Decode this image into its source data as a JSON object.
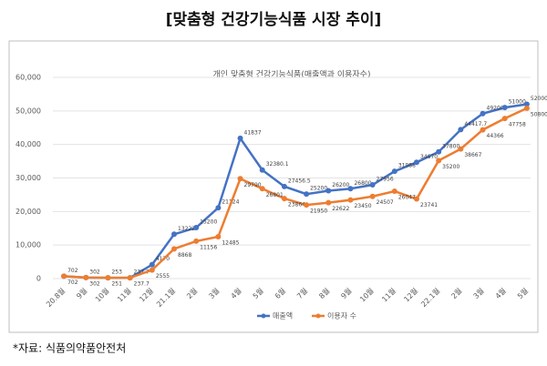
{
  "title": "[맞춤형 건강기능식품 시장 추이]",
  "source": "*자료: 식품의약품안전처",
  "chart_data": {
    "type": "line",
    "title": "개인 맞춤형 건강기능식품(매출액과 이용자수)",
    "categories": [
      "20.8월",
      "9월",
      "10월",
      "11월",
      "12월",
      "21.1월",
      "2월",
      "3월",
      "4월",
      "5월",
      "6월",
      "7월",
      "8월",
      "9월",
      "10월",
      "11월",
      "12월",
      "22.1월",
      "2월",
      "3월",
      "4월",
      "5월"
    ],
    "series": [
      {
        "name": "매출액",
        "color": "#4472c4",
        "values": [
          702,
          302,
          253,
          237.7,
          4170,
          13222,
          15200,
          21124,
          41837,
          32380.1,
          27456.5,
          25200,
          26200,
          26800,
          27956,
          31988,
          34670,
          37800,
          44417.7,
          49200,
          51000,
          52000
        ]
      },
      {
        "name": "이용자 수",
        "color": "#ed7d31",
        "values": [
          702,
          302,
          251,
          237.7,
          2555,
          8868,
          11156,
          12485,
          29790,
          26801,
          23864,
          21950,
          22622,
          23450,
          24507,
          26047,
          23741,
          35200,
          38667,
          44366,
          47758,
          50800
        ]
      }
    ],
    "ylim": [
      0,
      60000
    ],
    "yticks": [
      0,
      {
        "value": 10000,
        "label": "10,000"
      },
      {
        "value": 20000,
        "label": "20,000"
      },
      {
        "value": 30000,
        "label": "30,000"
      },
      {
        "value": 40000,
        "label": "40,000"
      },
      {
        "value": 50000,
        "label": "50,000"
      },
      {
        "value": 60000,
        "label": "60,000"
      }
    ],
    "grid": true,
    "legend": "bottom"
  }
}
